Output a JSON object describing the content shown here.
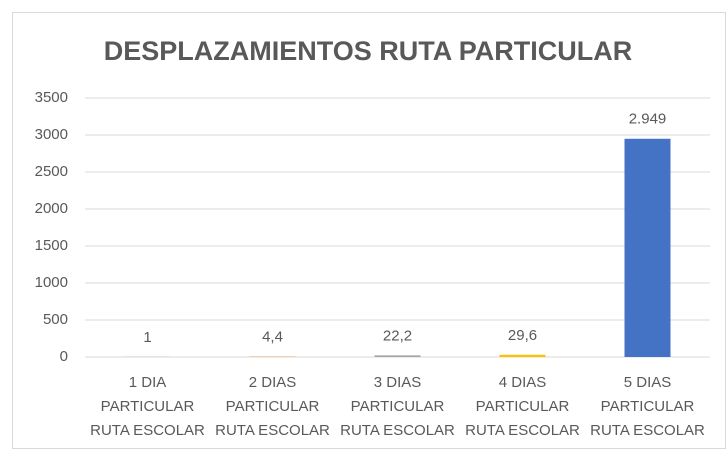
{
  "chart_data": {
    "type": "bar",
    "title": "DESPLAZAMIENTOS RUTA PARTICULAR",
    "categories": [
      [
        "1 DIA",
        "PARTICULAR",
        "RUTA ESCOLAR"
      ],
      [
        "2 DIAS",
        "PARTICULAR",
        "RUTA ESCOLAR"
      ],
      [
        "3 DIAS",
        "PARTICULAR",
        "RUTA ESCOLAR"
      ],
      [
        "4 DIAS",
        "PARTICULAR",
        "RUTA ESCOLAR"
      ],
      [
        "5 DIAS",
        "PARTICULAR",
        "RUTA ESCOLAR"
      ]
    ],
    "values": [
      1,
      4.4,
      22.2,
      29.6,
      2949
    ],
    "value_labels": [
      "1",
      "4,4",
      "22,2",
      "29,6",
      "2.949"
    ],
    "colors": [
      "#4472c4",
      "#ed7d31",
      "#a5a5a5",
      "#ffc000",
      "#4472c4"
    ],
    "ylim": [
      0,
      3500
    ],
    "yticks": [
      0,
      500,
      1000,
      1500,
      2000,
      2500,
      3000,
      3500
    ],
    "grid": true
  }
}
